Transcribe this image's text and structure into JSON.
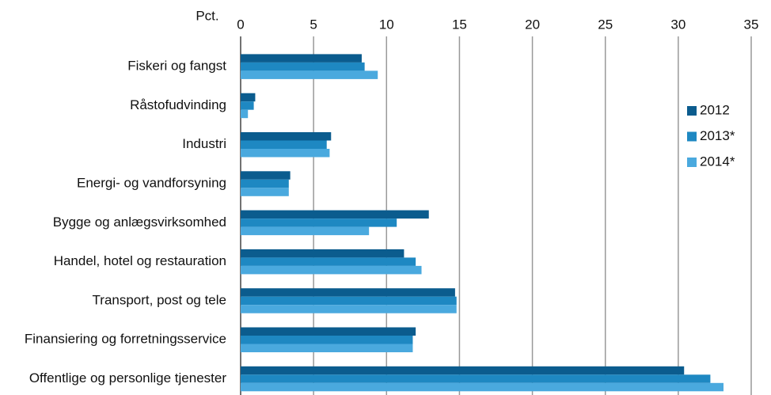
{
  "chart_data": {
    "type": "hbar",
    "x_label": "Pct.",
    "categories": [
      "Fiskeri og fangst",
      "Råstofudvinding",
      "Industri",
      "Energi- og vandforsyning",
      "Bygge og anlægsvirksomhed",
      "Handel, hotel og restauration",
      "Transport, post og tele",
      "Finansiering og forretningsservice",
      "Offentlige og personlige tjenester"
    ],
    "series": [
      {
        "name": "2012",
        "color": "#0b5c8e",
        "values": [
          8.3,
          1.0,
          6.2,
          3.4,
          12.9,
          11.2,
          14.7,
          12.0,
          30.4
        ]
      },
      {
        "name": "2013*",
        "color": "#1e88c2",
        "values": [
          8.5,
          0.9,
          5.9,
          3.3,
          10.7,
          12.0,
          14.8,
          11.8,
          32.2
        ]
      },
      {
        "name": "2014*",
        "color": "#4aa9de",
        "values": [
          9.4,
          0.5,
          6.1,
          3.3,
          8.8,
          12.4,
          14.8,
          11.8,
          33.1
        ]
      }
    ],
    "xlim": [
      0,
      35
    ],
    "xticks": [
      0,
      5,
      10,
      15,
      20,
      25,
      30,
      35
    ],
    "grid": true,
    "legend": "right"
  }
}
